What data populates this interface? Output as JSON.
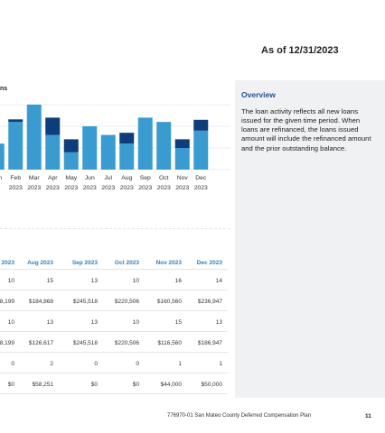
{
  "header": {
    "as_of": "As of 12/31/2023"
  },
  "chart_data": {
    "type": "bar",
    "title": "ns",
    "categories": [
      "Jan",
      "Feb",
      "Mar",
      "Apr",
      "May",
      "Jun",
      "Jul",
      "Aug",
      "Sep",
      "Oct",
      "Nov",
      "Dec"
    ],
    "category_years": [
      "3",
      "2023",
      "2023",
      "2023",
      "2023",
      "2023",
      "2023",
      "2023",
      "2023",
      "2023",
      "2023",
      "2023"
    ],
    "stacked": true,
    "ylim": [
      0,
      16
    ],
    "grid": true,
    "legend": "none",
    "colors": {
      "new": "#3a9bd0",
      "refinanced": "#0d3d7a"
    },
    "series": [
      {
        "values": [
          6,
          11,
          15,
          8,
          4,
          10,
          8,
          6,
          12,
          11,
          5,
          9
        ]
      },
      {
        "values": [
          0,
          0.6,
          0,
          4,
          3,
          0,
          0,
          2.5,
          0,
          0,
          2,
          2.5
        ]
      }
    ]
  },
  "sidebar": {
    "title": "Overview",
    "body": "The loan activity reflects all new loans issued for the given time period. When loans are refinanced, the loans issued amount will include the refinanced amount and the prior outstanding balance."
  },
  "table": {
    "headers": [
      "2023",
      "Aug 2023",
      "Sep 2023",
      "Oct 2023",
      "Nov 2023",
      "Dec 2023"
    ],
    "rows": [
      [
        "10",
        "15",
        "13",
        "10",
        "16",
        "14"
      ],
      [
        "8,199",
        "$184,868",
        "$245,518",
        "$220,506",
        "$160,560",
        "$236,947"
      ],
      [
        "10",
        "13",
        "13",
        "10",
        "15",
        "13"
      ],
      [
        "8,199",
        "$126,617",
        "$245,518",
        "$220,506",
        "$116,560",
        "$186,947"
      ],
      [
        "0",
        "2",
        "0",
        "0",
        "1",
        "1"
      ],
      [
        "$0",
        "$58,251",
        "$0",
        "$0",
        "$44,000",
        "$50,000"
      ]
    ]
  },
  "footer": {
    "text": "776970-01 San Mateo County Deferred Compensation Plan",
    "page": "11"
  }
}
